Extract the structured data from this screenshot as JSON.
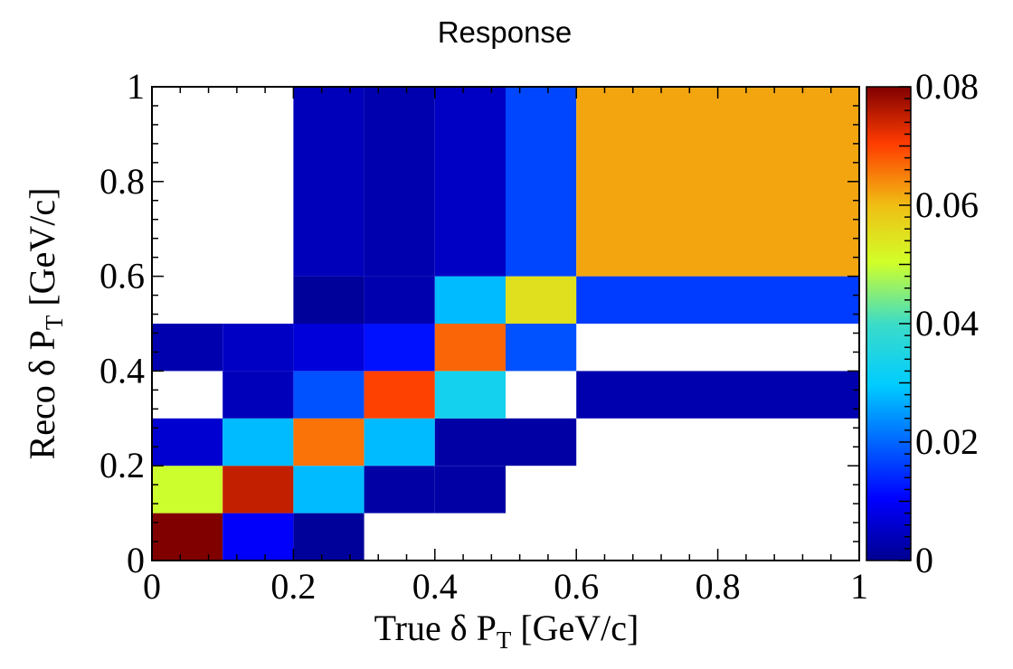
{
  "chart_data": {
    "type": "heatmap",
    "title": "Response",
    "xlabel": {
      "main": "True δ P",
      "sub": "T",
      "unit": " [GeV/c]"
    },
    "ylabel": {
      "main": "Reco δ P",
      "sub": "T",
      "unit": " [GeV/c]"
    },
    "xlim": [
      0,
      1
    ],
    "ylim": [
      0,
      1
    ],
    "zlim": [
      0,
      0.08
    ],
    "x_ticks": [
      "0",
      "0.2",
      "0.4",
      "0.6",
      "0.8",
      "1"
    ],
    "y_ticks": [
      "0",
      "0.2",
      "0.4",
      "0.6",
      "0.8",
      "1"
    ],
    "z_ticks": [
      "0",
      "0.02",
      "0.04",
      "0.06",
      "0.08"
    ],
    "x_edges": [
      0,
      0.1,
      0.2,
      0.3,
      0.4,
      0.5,
      0.6,
      1.0
    ],
    "y_edges": [
      0,
      0.1,
      0.2,
      0.3,
      0.4,
      0.5,
      0.6,
      1.0
    ],
    "grid": false,
    "colorbar": "right",
    "cells": [
      [
        0.08,
        0.01,
        0.001,
        null,
        null,
        null,
        null
      ],
      [
        0.05,
        0.075,
        0.028,
        0.002,
        0.002,
        null,
        null
      ],
      [
        0.006,
        0.028,
        0.066,
        0.028,
        0.002,
        0.002,
        null
      ],
      [
        null,
        0.004,
        0.018,
        0.07,
        0.033,
        null,
        0.003
      ],
      [
        0.003,
        0.005,
        0.007,
        0.012,
        0.067,
        0.018,
        null
      ],
      [
        null,
        null,
        0.001,
        0.003,
        0.028,
        0.055,
        0.016
      ],
      [
        null,
        null,
        0.004,
        0.003,
        0.005,
        0.017,
        0.062
      ]
    ]
  }
}
